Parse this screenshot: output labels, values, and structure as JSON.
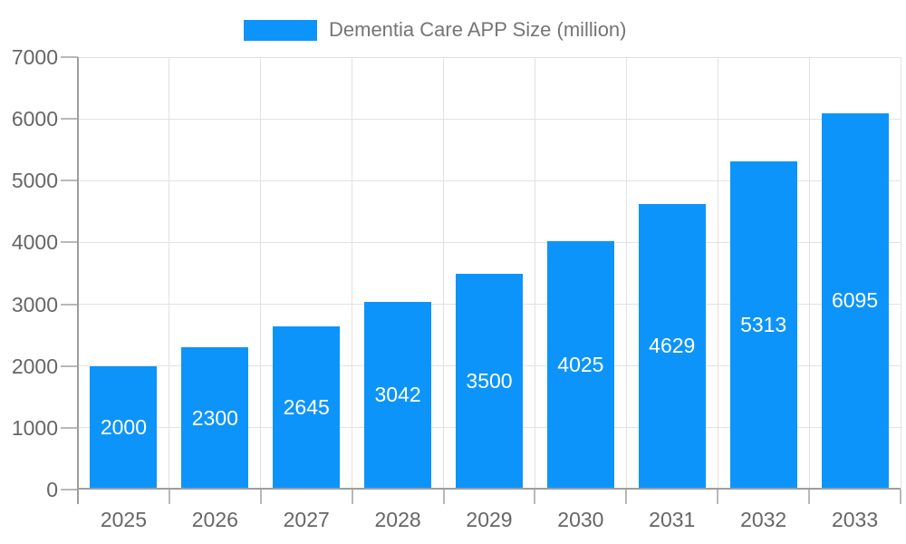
{
  "legend": {
    "label": "Dementia Care APP Size (million)"
  },
  "chart_data": {
    "type": "bar",
    "title": "Dementia Care APP Size (million)",
    "series_name": "Dementia Care APP Size (million)",
    "categories": [
      "2025",
      "2026",
      "2027",
      "2028",
      "2029",
      "2030",
      "2031",
      "2032",
      "2033"
    ],
    "values": [
      2000,
      2300,
      2645,
      3042,
      3500,
      4025,
      4629,
      5313,
      6095
    ],
    "xlabel": "",
    "ylabel": "",
    "ylim": [
      0,
      7000
    ],
    "yticks": [
      0,
      1000,
      2000,
      3000,
      4000,
      5000,
      6000,
      7000
    ],
    "grid": true,
    "legend_position": "top-center",
    "value_label_position": "inside-center",
    "colors": {
      "bar": "#0d94fa",
      "value_label": "#ffffff",
      "axis_text": "#666666",
      "legend_text": "#757575",
      "gridline": "#e2e2e2",
      "axis_line": "#9e9e9e",
      "tick": "#b8b8b8",
      "background": "#ffffff"
    }
  }
}
